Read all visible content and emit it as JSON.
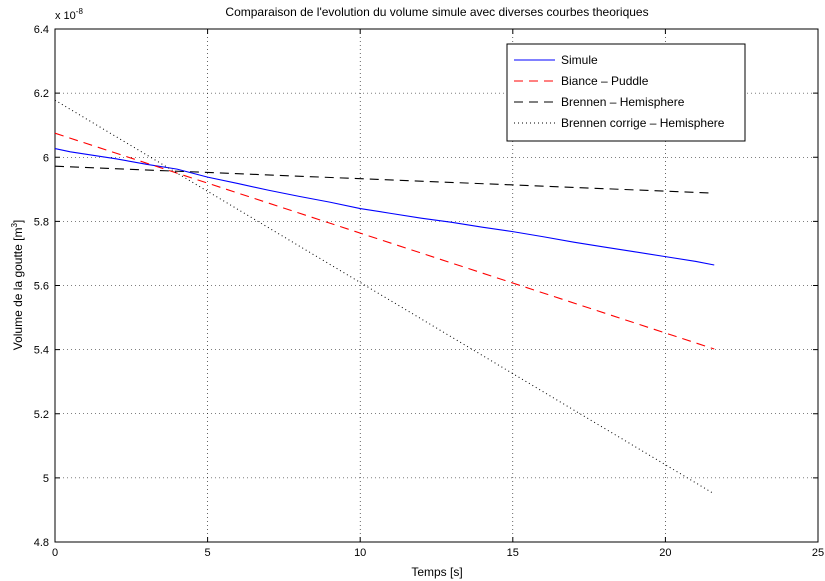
{
  "chart_data": {
    "type": "line",
    "title": "Comparaison de l'evolution du volume simule avec diverses courbes theoriques",
    "xlabel": "Temps [s]",
    "ylabel_main": "Volume de la goutte [m",
    "ylabel_sup": "3",
    "ylabel_close": "]",
    "exponent_base": "x 10",
    "exponent_power": "-8",
    "xlim": [
      0,
      25
    ],
    "ylim": [
      4.8,
      6.4
    ],
    "xticks": [
      "0",
      "5",
      "10",
      "15",
      "20",
      "25"
    ],
    "yticks": [
      "4.8",
      "5",
      "5.2",
      "5.4",
      "5.6",
      "5.8",
      "6",
      "6.2",
      "6.4"
    ],
    "grid": true,
    "legend_position": "top-right",
    "series": [
      {
        "name": "Simule",
        "color": "#0000ff",
        "style": "solid",
        "x": [
          0,
          0.5,
          2,
          3,
          4,
          5,
          6,
          7,
          8,
          9,
          10,
          11,
          12,
          13,
          14,
          15,
          16,
          17,
          18,
          19,
          20,
          21,
          21.6
        ],
        "y": [
          6.027,
          6.017,
          5.995,
          5.978,
          5.963,
          5.938,
          5.918,
          5.897,
          5.878,
          5.86,
          5.84,
          5.825,
          5.81,
          5.797,
          5.782,
          5.768,
          5.752,
          5.735,
          5.72,
          5.705,
          5.69,
          5.675,
          5.664
        ]
      },
      {
        "name": "Biance – Puddle",
        "color": "#ff0000",
        "style": "dashed",
        "x": [
          0,
          21.6
        ],
        "y": [
          6.075,
          5.402
        ]
      },
      {
        "name": "Brennen – Hemisphere",
        "color": "#000000",
        "style": "dashed",
        "x": [
          0,
          21.6
        ],
        "y": [
          5.972,
          5.888
        ]
      },
      {
        "name": "Brennen corrige – Hemisphere",
        "color": "#000000",
        "style": "dotted",
        "x": [
          0,
          21.6
        ],
        "y": [
          6.178,
          4.95
        ]
      }
    ]
  }
}
